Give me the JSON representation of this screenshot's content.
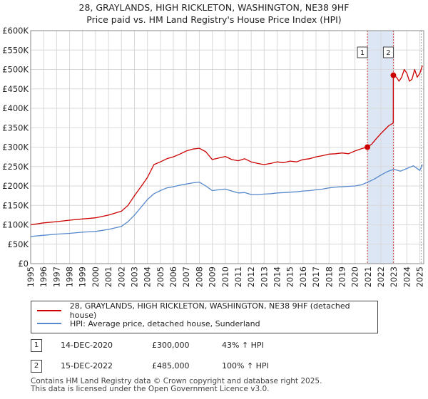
{
  "chart_data": {
    "type": "line",
    "title": "28, GRAYLANDS, HIGH RICKLETON, WASHINGTON, NE38 9HF",
    "subtitle": "Price paid vs. HM Land Registry's House Price Index (HPI)",
    "ylim": [
      0,
      600000
    ],
    "xlim": [
      1995,
      2025.3
    ],
    "y_ticks": [
      0,
      50000,
      100000,
      150000,
      200000,
      250000,
      300000,
      350000,
      400000,
      450000,
      500000,
      550000,
      600000
    ],
    "y_tick_labels": [
      "£0",
      "£50K",
      "£100K",
      "£150K",
      "£200K",
      "£250K",
      "£300K",
      "£350K",
      "£400K",
      "£450K",
      "£500K",
      "£550K",
      "£600K"
    ],
    "x_ticks": [
      1995,
      1996,
      1997,
      1998,
      1999,
      2000,
      2001,
      2002,
      2003,
      2004,
      2005,
      2006,
      2007,
      2008,
      2009,
      2010,
      2011,
      2012,
      2013,
      2014,
      2015,
      2016,
      2017,
      2018,
      2019,
      2020,
      2021,
      2022,
      2023,
      2024,
      2025
    ],
    "x_tick_labels": [
      "1995",
      "1996",
      "1997",
      "1998",
      "1999",
      "2000",
      "2001",
      "2002",
      "2003",
      "2004",
      "2005",
      "2006",
      "2007",
      "2008",
      "2009",
      "2010",
      "2011",
      "2012",
      "2013",
      "2014",
      "2015",
      "2016",
      "2017",
      "2018",
      "2019",
      "2020",
      "2021",
      "2022",
      "2023",
      "2024",
      "2025"
    ],
    "grid": true,
    "series": [
      {
        "name": "28, GRAYLANDS, HIGH RICKLETON, WASHINGTON, NE38 9HF (detached house)",
        "color": "#cc0000",
        "x": [
          1995.0,
          1996.0,
          1997.0,
          1998.0,
          1999.0,
          2000.0,
          2001.0,
          2002.0,
          2002.5,
          2003.0,
          2003.5,
          2004.0,
          2004.5,
          2005.0,
          2005.5,
          2006.0,
          2006.5,
          2007.0,
          2007.5,
          2008.0,
          2008.5,
          2009.0,
          2009.5,
          2010.0,
          2010.5,
          2011.0,
          2011.5,
          2012.0,
          2012.5,
          2013.0,
          2013.5,
          2014.0,
          2014.5,
          2015.0,
          2015.5,
          2016.0,
          2016.5,
          2017.0,
          2017.5,
          2018.0,
          2018.5,
          2019.0,
          2019.5,
          2020.0,
          2020.5,
          2020.96,
          2021.3,
          2021.6,
          2022.0,
          2022.3,
          2022.6,
          2022.95,
          2022.96,
          2023.2,
          2023.4,
          2023.6,
          2023.8,
          2024.0,
          2024.2,
          2024.4,
          2024.6,
          2024.8,
          2025.0,
          2025.2
        ],
        "values": [
          100000,
          105000,
          108000,
          112000,
          115000,
          118000,
          125000,
          135000,
          150000,
          175000,
          198000,
          222000,
          255000,
          262000,
          270000,
          275000,
          282000,
          290000,
          295000,
          297000,
          288000,
          268000,
          272000,
          276000,
          268000,
          265000,
          270000,
          262000,
          258000,
          255000,
          258000,
          262000,
          260000,
          264000,
          262000,
          268000,
          270000,
          275000,
          278000,
          282000,
          283000,
          285000,
          283000,
          290000,
          296000,
          300000,
          308000,
          320000,
          335000,
          345000,
          355000,
          362000,
          485000,
          480000,
          470000,
          480000,
          500000,
          490000,
          470000,
          475000,
          500000,
          480000,
          490000,
          510000
        ]
      },
      {
        "name": "HPI: Average price, detached house, Sunderland",
        "color": "#5588cc",
        "x": [
          1995.0,
          1996.0,
          1997.0,
          1998.0,
          1999.0,
          2000.0,
          2001.0,
          2002.0,
          2002.5,
          2003.0,
          2003.5,
          2004.0,
          2004.5,
          2005.0,
          2005.5,
          2006.0,
          2006.5,
          2007.0,
          2007.5,
          2008.0,
          2008.5,
          2009.0,
          2009.5,
          2010.0,
          2010.5,
          2011.0,
          2011.5,
          2012.0,
          2012.5,
          2013.0,
          2013.5,
          2014.0,
          2014.5,
          2015.0,
          2015.5,
          2016.0,
          2016.5,
          2017.0,
          2017.5,
          2018.0,
          2018.5,
          2019.0,
          2019.5,
          2020.0,
          2020.5,
          2021.0,
          2021.5,
          2022.0,
          2022.5,
          2023.0,
          2023.5,
          2024.0,
          2024.5,
          2025.0,
          2025.2
        ],
        "values": [
          70000,
          73000,
          76000,
          78000,
          81000,
          83000,
          88000,
          96000,
          108000,
          125000,
          145000,
          165000,
          180000,
          188000,
          195000,
          198000,
          202000,
          205000,
          208000,
          210000,
          200000,
          188000,
          190000,
          192000,
          187000,
          182000,
          183000,
          178000,
          178000,
          179000,
          180000,
          182000,
          183000,
          184000,
          185000,
          187000,
          188000,
          190000,
          192000,
          195000,
          197000,
          198000,
          199000,
          200000,
          203000,
          210000,
          218000,
          228000,
          237000,
          243000,
          238000,
          245000,
          252000,
          240000,
          255000
        ]
      }
    ],
    "events": [
      {
        "label": "1",
        "x": 2020.96,
        "value": 300000
      },
      {
        "label": "2",
        "x": 2022.96,
        "value": 485000
      }
    ],
    "shaded_range": [
      2020.96,
      2022.96
    ]
  },
  "colors": {
    "red": "#cc0000",
    "blue": "#5588cc",
    "shade": "#dde6f5",
    "grid": "#d9d9d9",
    "event_line": "#cc4444"
  },
  "legend": [
    {
      "label": "28, GRAYLANDS, HIGH RICKLETON, WASHINGTON, NE38 9HF (detached house)",
      "color": "#cc0000"
    },
    {
      "label": "HPI: Average price, detached house, Sunderland",
      "color": "#5588cc"
    }
  ],
  "table": [
    {
      "num": "1",
      "date": "14-DEC-2020",
      "price": "£300,000",
      "hpi": "43% ↑ HPI"
    },
    {
      "num": "2",
      "date": "15-DEC-2022",
      "price": "£485,000",
      "hpi": "100% ↑ HPI"
    }
  ],
  "footer": {
    "line1": "Contains HM Land Registry data © Crown copyright and database right 2025.",
    "line2": "This data is licensed under the Open Government Licence v3.0."
  }
}
